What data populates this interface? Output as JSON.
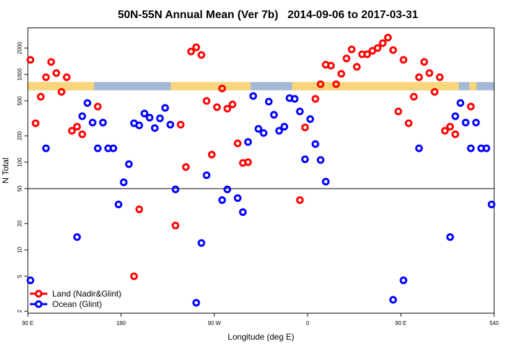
{
  "chart_data": {
    "type": "scatter",
    "title": "50N-55N Annual Mean (Ver 7b)   2014-09-06 to 2017-03-31",
    "xlabel": "Longitude (deg E)",
    "ylabel": "N Total",
    "xlim": [
      90,
      540
    ],
    "ylim": [
      1.9,
      3400
    ],
    "log_y": true,
    "xticks": [
      {
        "value": 90,
        "label": "90 E"
      },
      180,
      {
        "value": 270,
        "label": "90 W"
      },
      {
        "value": 360,
        "label": "0"
      },
      {
        "value": 450,
        "label": "90 E"
      },
      540
    ],
    "yticks": [
      2,
      5,
      10,
      20,
      50,
      100,
      200,
      500,
      1000,
      2000
    ],
    "hline": 50,
    "legend": "bottom-left",
    "mask": {
      "ylim": [
        660,
        820
      ],
      "ocean_color": "#a4b8d8",
      "land_color": "#f9d67a",
      "land": [
        [
          90,
          154
        ],
        [
          228,
          305
        ],
        [
          345,
          506
        ],
        [
          516,
          523
        ]
      ]
    },
    "series": [
      {
        "name": "Land (Nadir&Glint)",
        "color": "#ff0000",
        "x": [
          92.5,
          97.5,
          102.5,
          107.5,
          112.5,
          117.5,
          122.5,
          127.5,
          132.5,
          137.5,
          142.5,
          157.5,
          192.5,
          197.5,
          232.5,
          237.5,
          242.5,
          247.5,
          252.5,
          257.5,
          262.5,
          267.5,
          272.5,
          277.5,
          282.5,
          287.5,
          292.5,
          297.5,
          302.5,
          352.5,
          357.5,
          367.5,
          372.5,
          377.5,
          382.5,
          387.5,
          392.5,
          397.5,
          402.5,
          407.5,
          412.5,
          417.5,
          422.5,
          427.5,
          432.5,
          437.5,
          442.5,
          447.5,
          452.5,
          457.5,
          462.5,
          467.5,
          472.5,
          477.5,
          482.5,
          487.5,
          492.5,
          497.5,
          502.5,
          517.5
        ],
        "values": [
          1468,
          278,
          557,
          930,
          1390,
          1037,
          634,
          930,
          228,
          254,
          208,
          431,
          5,
          29,
          19,
          268,
          88,
          1828,
          2040,
          1667,
          499,
          122,
          424,
          693,
          408,
          456,
          164,
          98,
          100,
          37,
          249,
          527,
          774,
          1291,
          1260,
          774,
          1018,
          1523,
          1930,
          1223,
          1698,
          1698,
          1862,
          2003,
          2275,
          2634,
          1897,
          379,
          1468,
          278,
          557,
          930,
          1390,
          1037,
          634,
          930,
          228,
          254,
          208,
          431
        ]
      },
      {
        "name": "Ocean (Glint)",
        "color": "#0000ff",
        "x": [
          92.5,
          107.5,
          137.5,
          142.5,
          147.5,
          152.5,
          157.5,
          162.5,
          167.5,
          172.5,
          177.5,
          182.5,
          187.5,
          192.5,
          197.5,
          202.5,
          207.5,
          212.5,
          217.5,
          222.5,
          227.5,
          232.5,
          252.5,
          257.5,
          262.5,
          277.5,
          282.5,
          292.5,
          297.5,
          302.5,
          307.5,
          312.5,
          317.5,
          322.5,
          327.5,
          332.5,
          337.5,
          342.5,
          347.5,
          352.5,
          357.5,
          362.5,
          367.5,
          372.5,
          377.5,
          442.5,
          452.5,
          467.5,
          497.5,
          502.5,
          507.5,
          512.5,
          517.5,
          522.5,
          527.5,
          532.5,
          537.5
        ],
        "values": [
          4.5,
          144,
          14,
          334,
          473,
          283,
          144,
          283,
          144,
          144,
          33,
          59,
          95,
          278,
          263,
          359,
          322,
          245,
          316,
          416,
          268,
          49,
          2.5,
          12,
          71,
          37,
          49,
          39,
          27,
          170,
          568,
          240,
          215,
          490,
          347,
          228,
          254,
          537,
          527,
          379,
          108,
          310,
          161,
          106,
          60,
          2.7,
          4.5,
          144,
          14,
          334,
          473,
          283,
          144,
          283,
          144,
          144,
          33
        ]
      }
    ]
  }
}
